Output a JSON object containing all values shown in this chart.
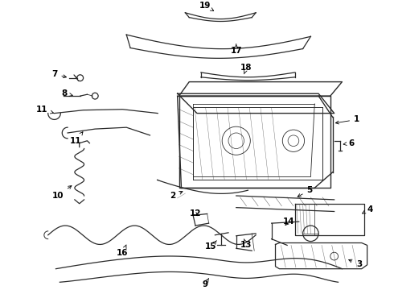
{
  "title": "",
  "bg_color": "#ffffff",
  "line_color": "#2a2a2a",
  "label_color": "#000000",
  "figsize": [
    4.9,
    3.6
  ],
  "dpi": 100,
  "label_fontsize": 7.5,
  "label_fontweight": "bold"
}
